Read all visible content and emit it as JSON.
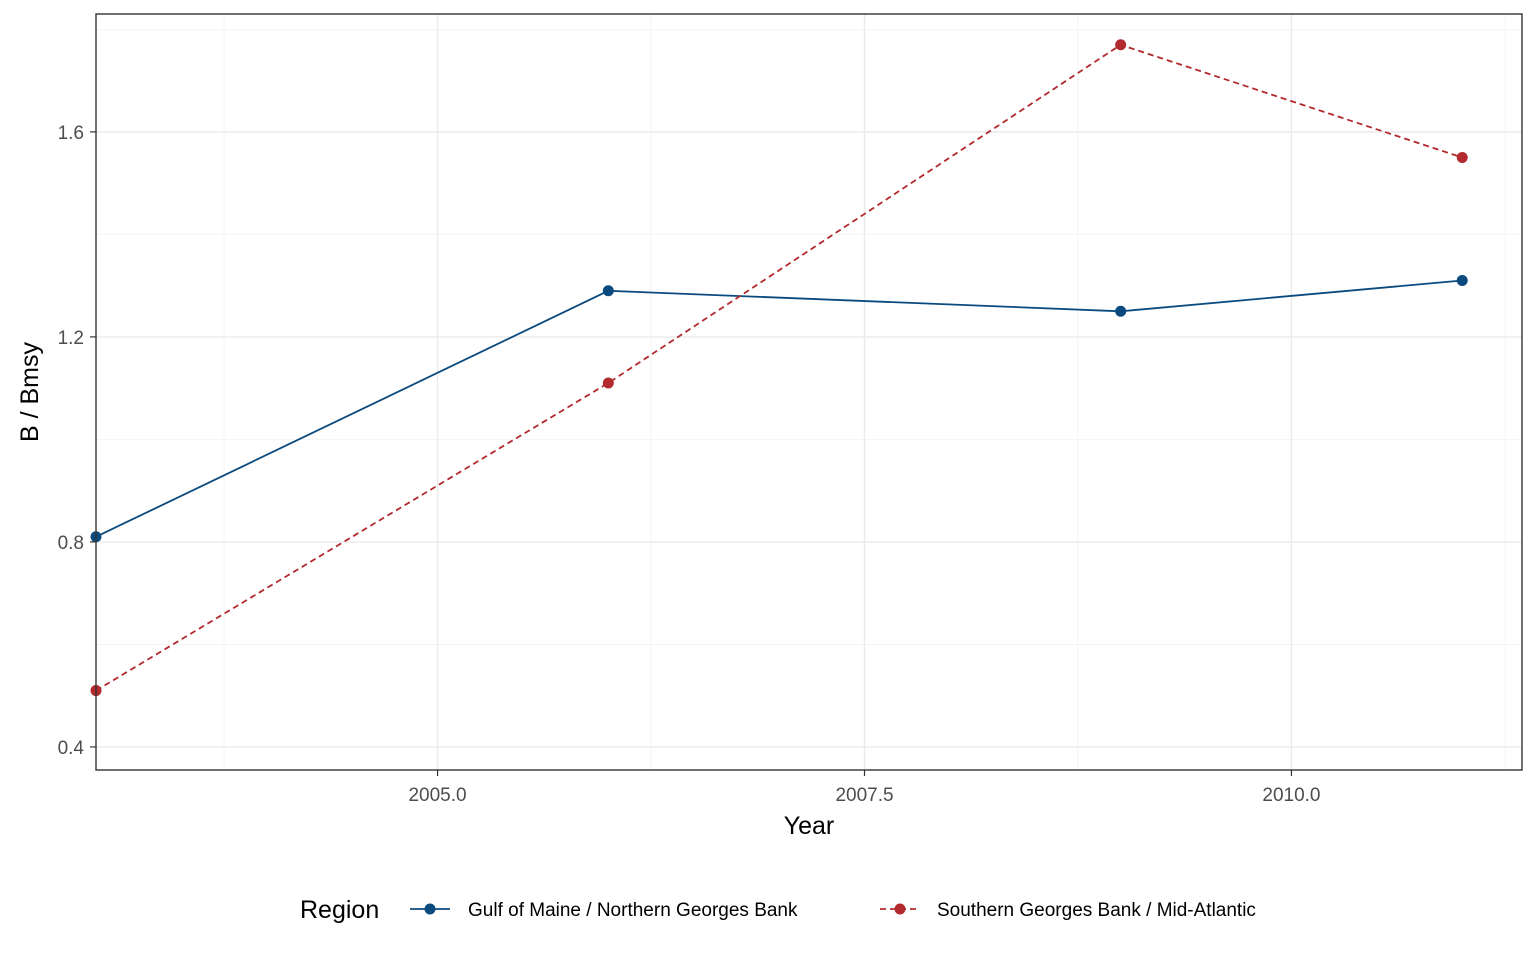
{
  "chart_data": {
    "type": "line",
    "xlabel": "Year",
    "ylabel": "B / Bmsy",
    "xlim": [
      2003.0,
      2011.35
    ],
    "ylim": [
      0.355,
      1.83
    ],
    "x_ticks": [
      2005.0,
      2007.5,
      2010.0
    ],
    "x_tick_labels": [
      "2005.0",
      "2007.5",
      "2010.0"
    ],
    "x_minor_ticks": [
      2003.75,
      2006.25,
      2008.75,
      2011.25
    ],
    "y_ticks": [
      0.4,
      0.8,
      1.2,
      1.6
    ],
    "y_tick_labels": [
      "0.4",
      "0.8",
      "1.2",
      "1.6"
    ],
    "y_minor_ticks": [
      0.6,
      1.0,
      1.4,
      1.8
    ],
    "grid": true,
    "legend": {
      "title": "Region",
      "position": "bottom"
    },
    "series": [
      {
        "name": "Gulf of Maine / Northern Georges Bank",
        "color": "#0b4a7e",
        "line_style": "solid",
        "x": [
          2003,
          2006,
          2009,
          2011
        ],
        "y": [
          0.81,
          1.29,
          1.25,
          1.31
        ]
      },
      {
        "name": "Southern Georges Bank / Mid-Atlantic",
        "color": "#b2292e",
        "line_style": "dashed",
        "x": [
          2003,
          2006,
          2009,
          2011
        ],
        "y": [
          0.51,
          1.11,
          1.77,
          1.55
        ]
      }
    ]
  }
}
